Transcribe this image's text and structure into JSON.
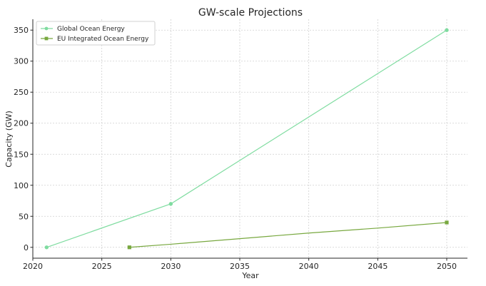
{
  "chart_data": {
    "type": "line",
    "title": "GW-scale Projections",
    "xlabel": "Year",
    "ylabel": "Capacity (GW)",
    "xlim": [
      2020,
      2051.5
    ],
    "ylim": [
      -17.5,
      367.5
    ],
    "xticks": [
      2020,
      2025,
      2030,
      2035,
      2040,
      2045,
      2050
    ],
    "yticks": [
      0,
      50,
      100,
      150,
      200,
      250,
      300,
      350
    ],
    "grid": true,
    "grid_style": "dotted",
    "legend_position": "top-left",
    "series": [
      {
        "name": "Global Ocean Energy",
        "color": "#7fdca0",
        "marker": "circle",
        "points": [
          [
            2021,
            0
          ],
          [
            2030,
            70
          ],
          [
            2050,
            350
          ]
        ]
      },
      {
        "name": "EU Integrated Ocean Energy",
        "color": "#78a83f",
        "marker": "square",
        "points": [
          [
            2027,
            0
          ],
          [
            2030,
            5
          ],
          [
            2035,
            14
          ],
          [
            2040,
            23
          ],
          [
            2045,
            31
          ],
          [
            2050,
            40
          ]
        ]
      }
    ]
  }
}
